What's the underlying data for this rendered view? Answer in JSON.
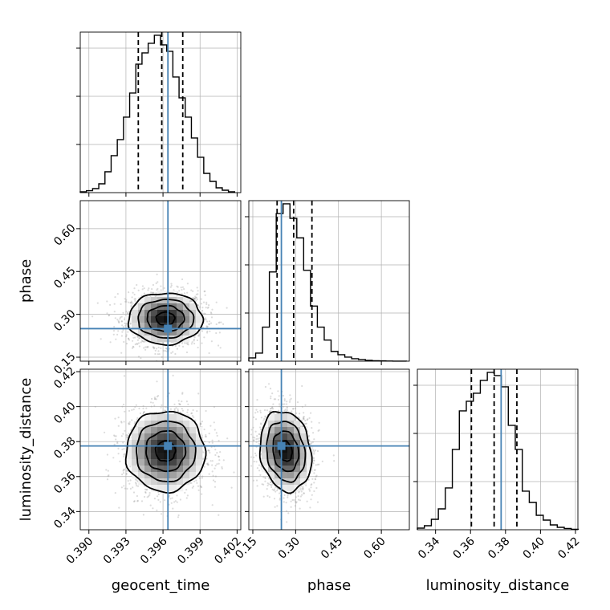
{
  "chart_data": {
    "type": "corner",
    "parameters": [
      {
        "name": "geocent_time",
        "label": "geocent_time",
        "range": [
          0.3893,
          0.4023
        ],
        "ticks": [
          0.39,
          0.393,
          0.396,
          0.399,
          0.402
        ],
        "tick_labels": [
          "0.390",
          "0.393",
          "0.396",
          "0.399",
          "0.402"
        ],
        "truth": 0.3964,
        "quantiles": [
          0.394,
          0.3959,
          0.3976
        ],
        "hist_bins": [
          0.3893,
          0.3898,
          0.3903,
          0.3908,
          0.3913,
          0.3918,
          0.3923,
          0.3928,
          0.3933,
          0.3938,
          0.3943,
          0.3948,
          0.3953,
          0.3958,
          0.3963,
          0.3968,
          0.3973,
          0.3978,
          0.3983,
          0.3988,
          0.3993,
          0.3998,
          0.4003,
          0.4008,
          0.4013,
          0.4018
        ],
        "hist_values": [
          0.5,
          1.2,
          2.5,
          5.5,
          13,
          23,
          33,
          47,
          62,
          80,
          87,
          93,
          98,
          92,
          88,
          72,
          59,
          47,
          34,
          22,
          12,
          7,
          3,
          1.5,
          0.5
        ]
      },
      {
        "name": "phase",
        "label": "phase",
        "range": [
          0.136,
          0.698
        ],
        "ticks": [
          0.15,
          0.3,
          0.45,
          0.6
        ],
        "tick_labels": [
          "0.15",
          "0.30",
          "0.45",
          "0.60"
        ],
        "truth": 0.25,
        "quantiles": [
          0.235,
          0.293,
          0.357
        ],
        "hist_bins": [
          0.136,
          0.16,
          0.184,
          0.208,
          0.232,
          0.256,
          0.28,
          0.304,
          0.328,
          0.352,
          0.376,
          0.4,
          0.424,
          0.448,
          0.472,
          0.496,
          0.52,
          0.544,
          0.568,
          0.592,
          0.616,
          0.64,
          0.664,
          0.688
        ],
        "hist_values": [
          2,
          5,
          21,
          55,
          91,
          97,
          88,
          76,
          56,
          34,
          21,
          13,
          6,
          4,
          2.5,
          1.5,
          1,
          0.5,
          0.3,
          0.2,
          0.1,
          0.05,
          0.02
        ]
      },
      {
        "name": "luminosity_distance",
        "label": "luminosity_distance",
        "range": [
          0.3296,
          0.4214
        ],
        "ticks": [
          0.34,
          0.36,
          0.38,
          0.4,
          0.42
        ],
        "tick_labels": [
          "0.34",
          "0.36",
          "0.38",
          "0.40",
          "0.42"
        ],
        "truth": 0.3775,
        "quantiles": [
          0.3605,
          0.3735,
          0.3865
        ],
        "hist_bins": [
          0.3296,
          0.3336,
          0.3376,
          0.3416,
          0.3456,
          0.3496,
          0.3536,
          0.3576,
          0.3616,
          0.3656,
          0.3696,
          0.3736,
          0.3776,
          0.3816,
          0.3856,
          0.3896,
          0.3936,
          0.3976,
          0.4016,
          0.4056,
          0.4096,
          0.4136,
          0.4176,
          0.4216
        ],
        "hist_values": [
          1,
          2.5,
          6.5,
          13,
          26,
          50,
          74,
          80,
          85,
          93,
          98,
          96,
          89,
          65,
          50,
          24,
          17,
          9,
          6,
          3,
          1.5,
          0.8,
          0.3
        ]
      }
    ],
    "pairs": [
      {
        "x": "geocent_time",
        "y": "phase",
        "center": [
          0.3962,
          0.285
        ],
        "sigma": [
          0.0015,
          0.045
        ],
        "rho": 0.0
      },
      {
        "x": "geocent_time",
        "y": "luminosity_distance",
        "center": [
          0.3962,
          0.3745
        ],
        "sigma": [
          0.0016,
          0.0115
        ],
        "rho": 0.0
      },
      {
        "x": "phase",
        "y": "luminosity_distance",
        "center": [
          0.265,
          0.3745
        ],
        "sigma": [
          0.045,
          0.0115
        ],
        "rho": -0.15
      }
    ],
    "truth_color": "#4682b4",
    "hist_color": "#000000",
    "grid": true
  }
}
